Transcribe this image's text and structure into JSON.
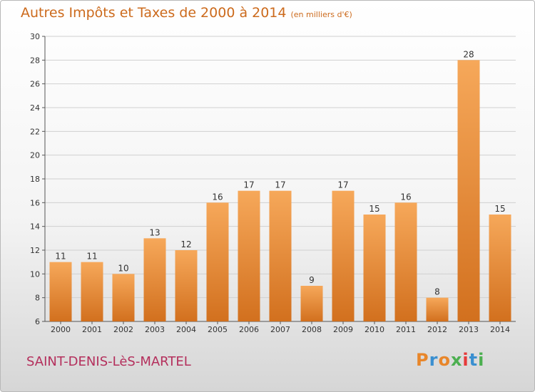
{
  "header": {
    "title": "Autres Impôts et Taxes de 2000 à 2014",
    "subtitle": "(en milliers d'€)"
  },
  "footer": {
    "location": "SAINT-DENIS-LèS-MARTEL",
    "brand": "Proxiti"
  },
  "colors": {
    "bar_light": "#f6a85a",
    "bar_dark": "#d2701e",
    "title": "#cc6a1c",
    "location": "#b42f5c",
    "grid": "#d0d0d0"
  },
  "chart_data": {
    "type": "bar",
    "categories": [
      "2000",
      "2001",
      "2002",
      "2003",
      "2004",
      "2005",
      "2006",
      "2007",
      "2008",
      "2009",
      "2010",
      "2011",
      "2012",
      "2013",
      "2014"
    ],
    "values": [
      11,
      11,
      10,
      13,
      12,
      16,
      17,
      17,
      9,
      17,
      15,
      16,
      8,
      28,
      15
    ],
    "ylim": [
      6,
      30
    ],
    "yticks": [
      6,
      8,
      10,
      12,
      14,
      16,
      18,
      20,
      22,
      24,
      26,
      28,
      30
    ],
    "grid": true,
    "data_labels": true
  }
}
